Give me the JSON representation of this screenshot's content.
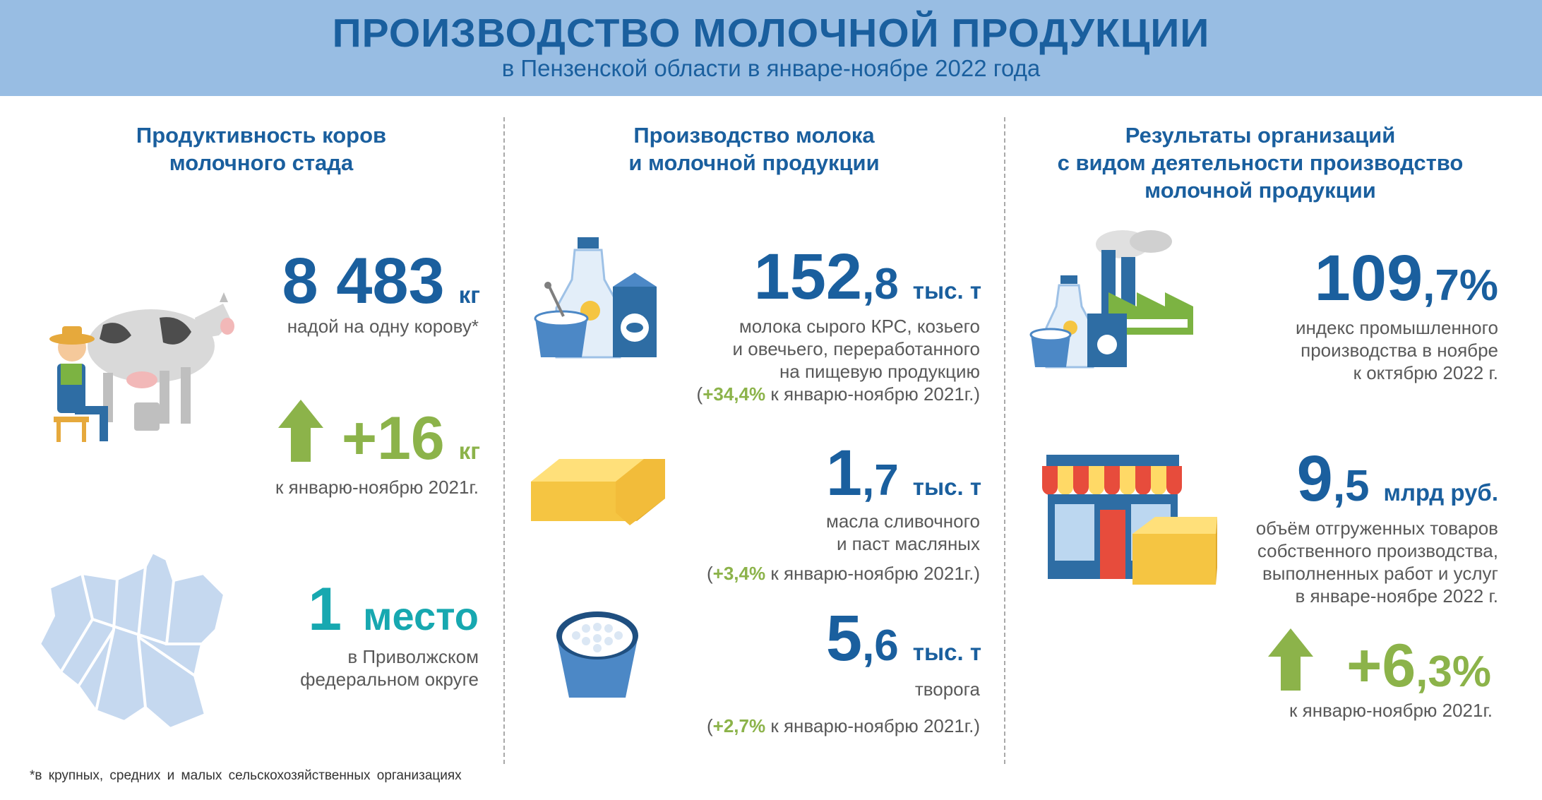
{
  "header": {
    "title": "ПРОИЗВОДСТВО МОЛОЧНОЙ ПРОДУКЦИИ",
    "subtitle": "в Пензенской области в январе-ноябре 2022 года"
  },
  "colors": {
    "header_bg": "#98bde3",
    "title": "#1a5f9e",
    "green": "#8cb34a",
    "teal": "#17a8b0"
  },
  "col1": {
    "heading_1": "Продуктивность коров",
    "heading_2": "молочного стада",
    "yield": {
      "value": "8 483",
      "unit": "кг",
      "desc": "надой на одну корову*"
    },
    "growth": {
      "value": "+16",
      "unit": "кг",
      "desc": "к январю-ноябрю 2021г."
    },
    "rank": {
      "value": "1",
      "unit": "место",
      "desc_1": "в Приволжском",
      "desc_2": "федеральном округе"
    }
  },
  "col2": {
    "heading_1": "Производство молока",
    "heading_2": "и молочной продукции",
    "milk": {
      "int": "152",
      "dec": ",8",
      "unit": "тыс. т",
      "desc_1": "молока сырого КРС, козьего",
      "desc_2": "и овечьего, переработанного",
      "desc_3": "на пищевую продукцию",
      "growth": "+34,4%",
      "growth_ref": "к январю-ноябрю 2021г."
    },
    "butter": {
      "int": "1",
      "dec": ",7",
      "unit": "тыс. т",
      "desc_1": "масла сливочного",
      "desc_2": "и паст масляных",
      "growth": "+3,4%",
      "growth_ref": "к январю-ноябрю 2021г."
    },
    "cheese": {
      "int": "5",
      "dec": ",6",
      "unit": "тыс. т",
      "desc_1": "творога",
      "growth": "+2,7%",
      "growth_ref": "к январю-ноябрю 2021г."
    }
  },
  "col3": {
    "heading_1": "Результаты организаций",
    "heading_2": "с видом деятельности производство",
    "heading_3": "молочной продукции",
    "index": {
      "int": "109",
      "dec": ",7%",
      "desc_1": "индекс промышленного",
      "desc_2": "производства в ноябре",
      "desc_3": "к октябрю 2022 г."
    },
    "shipped": {
      "int": "9",
      "dec": ",5",
      "unit": "млрд руб.",
      "desc_1": "объём отгруженных товаров",
      "desc_2": "собственного производства,",
      "desc_3": "выполненных работ и услуг",
      "desc_4": "в январе-ноябре 2022 г."
    },
    "growth": {
      "int": "+6",
      "dec": ",3%",
      "desc": "к январю-ноябрю 2021г."
    }
  },
  "icons": [
    "cow-milking-icon",
    "region-map-icon",
    "milk-products-icon",
    "butter-icon",
    "cottage-cheese-icon",
    "factory-icon",
    "shop-icon",
    "up-arrow-icon"
  ],
  "footnote": "*в крупных, средних и малых сельскохозяйственных организациях"
}
